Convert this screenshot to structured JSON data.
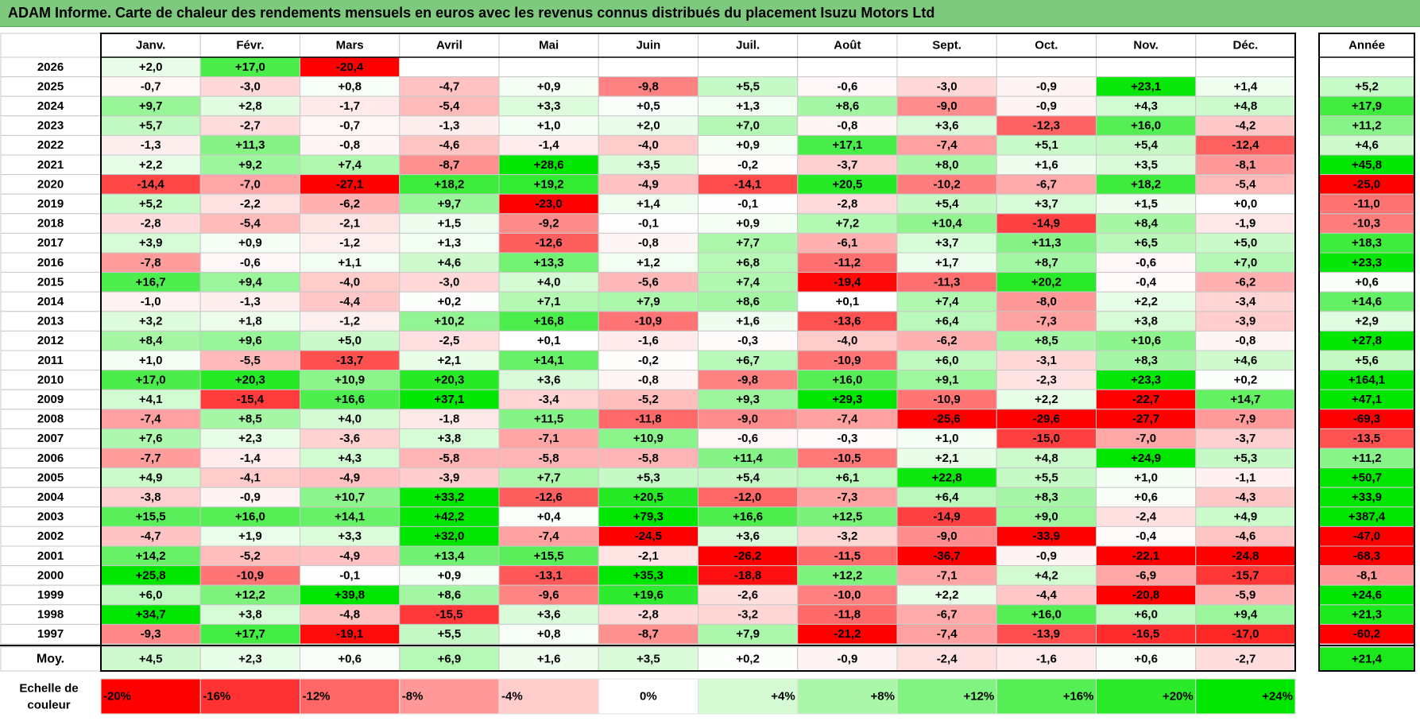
{
  "title": "ADAM Informe. Carte de chaleur des rendements mensuels en euros avec les revenus connus distribués du placement Isuzu Motors Ltd",
  "chart_data": {
    "type": "heatmap",
    "months": [
      "Janv.",
      "Févr.",
      "Mars",
      "Avril",
      "Mai",
      "Juin",
      "Juil.",
      "Août",
      "Sept.",
      "Oct.",
      "Nov.",
      "Déc."
    ],
    "year_header": "Année",
    "average_label": "Moy.",
    "rows": [
      {
        "year": "2026",
        "values": [
          "+2,0",
          "+17,0",
          "-20,4",
          "",
          "",
          "",
          "",
          "",
          "",
          "",
          "",
          ""
        ],
        "annual": ""
      },
      {
        "year": "2025",
        "values": [
          "-0,7",
          "-3,0",
          "+0,8",
          "-4,7",
          "+0,9",
          "-9,8",
          "+5,5",
          "-0,6",
          "-3,0",
          "-0,9",
          "+23,1",
          "+1,4"
        ],
        "annual": "+5,2"
      },
      {
        "year": "2024",
        "values": [
          "+9,7",
          "+2,8",
          "-1,7",
          "-5,4",
          "+3,3",
          "+0,5",
          "+1,3",
          "+8,6",
          "-9,0",
          "-0,9",
          "+4,3",
          "+4,8"
        ],
        "annual": "+17,9"
      },
      {
        "year": "2023",
        "values": [
          "+5,7",
          "-2,7",
          "-0,7",
          "-1,3",
          "+1,0",
          "+2,0",
          "+7,0",
          "-0,8",
          "+3,6",
          "-12,3",
          "+16,0",
          "-4,2"
        ],
        "annual": "+11,2"
      },
      {
        "year": "2022",
        "values": [
          "-1,3",
          "+11,3",
          "-0,8",
          "-4,6",
          "-1,4",
          "-4,0",
          "+0,9",
          "+17,1",
          "-7,4",
          "+5,1",
          "+5,4",
          "-12,4"
        ],
        "annual": "+4,6"
      },
      {
        "year": "2021",
        "values": [
          "+2,2",
          "+9,2",
          "+7,4",
          "-8,7",
          "+28,6",
          "+3,5",
          "-0,2",
          "-3,7",
          "+8,0",
          "+1,6",
          "+3,5",
          "-8,1"
        ],
        "annual": "+45,8"
      },
      {
        "year": "2020",
        "values": [
          "-14,4",
          "-7,0",
          "-27,1",
          "+18,2",
          "+19,2",
          "-4,9",
          "-14,1",
          "+20,5",
          "-10,2",
          "-6,7",
          "+18,2",
          "-5,4"
        ],
        "annual": "-25,0"
      },
      {
        "year": "2019",
        "values": [
          "+5,2",
          "-2,2",
          "-6,2",
          "+9,7",
          "-23,0",
          "+1,4",
          "-0,1",
          "-2,8",
          "+5,4",
          "+3,7",
          "+1,5",
          "+0,0"
        ],
        "annual": "-11,0"
      },
      {
        "year": "2018",
        "values": [
          "-2,8",
          "-5,4",
          "-2,1",
          "+1,5",
          "-9,2",
          "-0,1",
          "+0,9",
          "+7,2",
          "+10,4",
          "-14,9",
          "+8,4",
          "-1,9"
        ],
        "annual": "-10,3"
      },
      {
        "year": "2017",
        "values": [
          "+3,9",
          "+0,9",
          "-1,2",
          "+1,3",
          "-12,6",
          "-0,8",
          "+7,7",
          "-6,1",
          "+3,7",
          "+11,3",
          "+6,5",
          "+5,0"
        ],
        "annual": "+18,3"
      },
      {
        "year": "2016",
        "values": [
          "-7,8",
          "-0,6",
          "+1,1",
          "+4,6",
          "+13,3",
          "+1,2",
          "+6,8",
          "-11,2",
          "+1,7",
          "+8,7",
          "-0,6",
          "+7,0"
        ],
        "annual": "+23,3"
      },
      {
        "year": "2015",
        "values": [
          "+16,7",
          "+9,4",
          "-4,0",
          "-3,0",
          "+4,0",
          "-5,6",
          "+7,4",
          "-19,4",
          "-11,3",
          "+20,2",
          "-0,4",
          "-6,2"
        ],
        "annual": "+0,6"
      },
      {
        "year": "2014",
        "values": [
          "-1,0",
          "-1,3",
          "-4,4",
          "+0,2",
          "+7,1",
          "+7,9",
          "+8,6",
          "+0,1",
          "+7,4",
          "-8,0",
          "+2,2",
          "-3,4"
        ],
        "annual": "+14,6"
      },
      {
        "year": "2013",
        "values": [
          "+3,2",
          "+1,8",
          "-1,2",
          "+10,2",
          "+16,8",
          "-10,9",
          "+1,6",
          "-13,6",
          "+6,4",
          "-7,3",
          "+3,8",
          "-3,9"
        ],
        "annual": "+2,9"
      },
      {
        "year": "2012",
        "values": [
          "+8,4",
          "+9,6",
          "+5,0",
          "-2,5",
          "+0,1",
          "-1,6",
          "-0,3",
          "-4,0",
          "-6,2",
          "+8,5",
          "+10,6",
          "-0,8"
        ],
        "annual": "+27,8"
      },
      {
        "year": "2011",
        "values": [
          "+1,0",
          "-5,5",
          "-13,7",
          "+2,1",
          "+14,1",
          "-0,2",
          "+6,7",
          "-10,9",
          "+6,0",
          "-3,1",
          "+8,3",
          "+4,6"
        ],
        "annual": "+5,6"
      },
      {
        "year": "2010",
        "values": [
          "+17,0",
          "+20,3",
          "+10,9",
          "+20,3",
          "+3,6",
          "-0,8",
          "-9,8",
          "+16,0",
          "+9,1",
          "-2,3",
          "+23,3",
          "+0,2"
        ],
        "annual": "+164,1"
      },
      {
        "year": "2009",
        "values": [
          "+4,1",
          "-15,4",
          "+16,6",
          "+37,1",
          "-3,4",
          "-5,2",
          "+9,3",
          "+29,3",
          "-10,9",
          "+2,2",
          "-22,7",
          "+14,7"
        ],
        "annual": "+47,1"
      },
      {
        "year": "2008",
        "values": [
          "-7,4",
          "+8,5",
          "+4,0",
          "-1,8",
          "+11,5",
          "-11,8",
          "-9,0",
          "-7,4",
          "-25,6",
          "-29,6",
          "-27,7",
          "-7,9"
        ],
        "annual": "-69,3"
      },
      {
        "year": "2007",
        "values": [
          "+7,6",
          "+2,3",
          "-3,6",
          "+3,8",
          "-7,1",
          "+10,9",
          "-0,6",
          "-0,3",
          "+1,0",
          "-15,0",
          "-7,0",
          "-3,7"
        ],
        "annual": "-13,5"
      },
      {
        "year": "2006",
        "values": [
          "-7,7",
          "-1,4",
          "+4,3",
          "-5,8",
          "-5,8",
          "-5,8",
          "+11,4",
          "-10,5",
          "+2,1",
          "+4,8",
          "+24,9",
          "+5,3"
        ],
        "annual": "+11,2"
      },
      {
        "year": "2005",
        "values": [
          "+4,9",
          "-4,1",
          "-4,9",
          "-3,9",
          "+7,7",
          "+5,3",
          "+5,4",
          "+6,1",
          "+22,8",
          "+5,5",
          "+1,0",
          "-1,1"
        ],
        "annual": "+50,7"
      },
      {
        "year": "2004",
        "values": [
          "-3,8",
          "-0,9",
          "+10,7",
          "+33,2",
          "-12,6",
          "+20,5",
          "-12,0",
          "-7,3",
          "+6,4",
          "+8,3",
          "+0,6",
          "-4,3"
        ],
        "annual": "+33,9"
      },
      {
        "year": "2003",
        "values": [
          "+15,5",
          "+16,0",
          "+14,1",
          "+42,2",
          "+0,4",
          "+79,3",
          "+16,6",
          "+12,5",
          "-14,9",
          "+9,0",
          "-2,4",
          "+4,9"
        ],
        "annual": "+387,4"
      },
      {
        "year": "2002",
        "values": [
          "-4,7",
          "+1,9",
          "+3,3",
          "+32,0",
          "-7,4",
          "-24,5",
          "+3,6",
          "-3,2",
          "-9,0",
          "-33,9",
          "-0,4",
          "-4,6"
        ],
        "annual": "-47,0"
      },
      {
        "year": "2001",
        "values": [
          "+14,2",
          "-5,2",
          "-4,9",
          "+13,4",
          "+15,5",
          "-2,1",
          "-26,2",
          "-11,5",
          "-36,7",
          "-0,9",
          "-22,1",
          "-24,8"
        ],
        "annual": "-68,3"
      },
      {
        "year": "2000",
        "values": [
          "+25,8",
          "-10,9",
          "-0,1",
          "+0,9",
          "-13,1",
          "+35,3",
          "-18,8",
          "+12,2",
          "-7,1",
          "+4,2",
          "-6,9",
          "-15,7"
        ],
        "annual": "-8,1"
      },
      {
        "year": "1999",
        "values": [
          "+6,0",
          "+12,2",
          "+39,8",
          "+8,6",
          "-9,6",
          "+19,6",
          "-2,6",
          "-10,0",
          "+2,2",
          "-4,4",
          "-20,8",
          "-5,9"
        ],
        "annual": "+24,6"
      },
      {
        "year": "1998",
        "values": [
          "+34,7",
          "+3,8",
          "-4,8",
          "-15,5",
          "+3,6",
          "-2,8",
          "-3,2",
          "-11,8",
          "-6,7",
          "+16,0",
          "+6,0",
          "+9,4"
        ],
        "annual": "+21,3"
      },
      {
        "year": "1997",
        "values": [
          "-9,3",
          "+17,7",
          "-19,1",
          "+5,5",
          "+0,8",
          "-8,7",
          "+7,9",
          "-21,2",
          "-7,4",
          "-13,9",
          "-16,5",
          "-17,0"
        ],
        "annual": "-60,2"
      }
    ],
    "average": {
      "values": [
        "+4,5",
        "+2,3",
        "+0,6",
        "+6,9",
        "+1,6",
        "+3,5",
        "+0,2",
        "-0,9",
        "-2,4",
        "-1,6",
        "+0,6",
        "-2,7"
      ],
      "annual": "+21,4"
    },
    "scale_label": [
      "Echelle de",
      "couleur"
    ],
    "scale": [
      "-20%",
      "-16%",
      "-12%",
      "-8%",
      "-4%",
      "0%",
      "+4%",
      "+8%",
      "+12%",
      "+16%",
      "+20%",
      "+24%"
    ],
    "colors": {
      "title_bar": "#7dc97d",
      "red": "#ff0000",
      "green": "#00e600",
      "white": "#ffffff"
    }
  }
}
